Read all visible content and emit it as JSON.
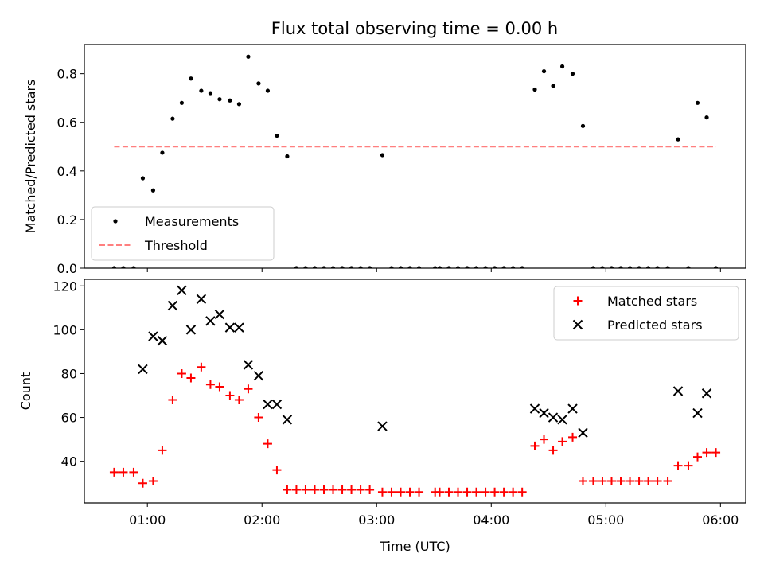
{
  "chart_data": [
    {
      "type": "scatter",
      "title": "Flux total observing time = 0.00 h",
      "xlabel": "",
      "ylabel": "Matched/Predicted stars",
      "ylim": [
        0,
        0.92
      ],
      "yticks": [
        0.0,
        0.2,
        0.4,
        0.6,
        0.8
      ],
      "ytick_labels": [
        "0.0",
        "0.2",
        "0.4",
        "0.6",
        "0.8"
      ],
      "x_unit": "hours UTC",
      "xlim": [
        0.45,
        6.22
      ],
      "legend_position": "lower-left",
      "series": [
        {
          "name": "Measurements",
          "marker": "dot",
          "color": "#000000",
          "points": [
            [
              0.71,
              0.0
            ],
            [
              0.79,
              0.0
            ],
            [
              0.88,
              0.0
            ],
            [
              0.96,
              0.37
            ],
            [
              1.05,
              0.32
            ],
            [
              1.13,
              0.475
            ],
            [
              1.22,
              0.615
            ],
            [
              1.3,
              0.68
            ],
            [
              1.38,
              0.78
            ],
            [
              1.47,
              0.73
            ],
            [
              1.55,
              0.72
            ],
            [
              1.63,
              0.695
            ],
            [
              1.72,
              0.69
            ],
            [
              1.8,
              0.675
            ],
            [
              1.88,
              0.87
            ],
            [
              1.97,
              0.76
            ],
            [
              2.05,
              0.73
            ],
            [
              2.13,
              0.545
            ],
            [
              2.22,
              0.46
            ],
            [
              2.3,
              0.0
            ],
            [
              2.38,
              0.0
            ],
            [
              2.46,
              0.0
            ],
            [
              2.54,
              0.0
            ],
            [
              2.62,
              0.0
            ],
            [
              2.7,
              0.0
            ],
            [
              2.78,
              0.0
            ],
            [
              2.86,
              0.0
            ],
            [
              2.94,
              0.0
            ],
            [
              3.05,
              0.465
            ],
            [
              3.13,
              0.0
            ],
            [
              3.21,
              0.0
            ],
            [
              3.29,
              0.0
            ],
            [
              3.37,
              0.0
            ],
            [
              3.51,
              0.0
            ],
            [
              3.55,
              0.0
            ],
            [
              3.63,
              0.0
            ],
            [
              3.71,
              0.0
            ],
            [
              3.79,
              0.0
            ],
            [
              3.87,
              0.0
            ],
            [
              3.95,
              0.0
            ],
            [
              4.03,
              0.0
            ],
            [
              4.11,
              0.0
            ],
            [
              4.19,
              0.0
            ],
            [
              4.27,
              0.0
            ],
            [
              4.38,
              0.735
            ],
            [
              4.46,
              0.81
            ],
            [
              4.54,
              0.75
            ],
            [
              4.62,
              0.83
            ],
            [
              4.71,
              0.8
            ],
            [
              4.8,
              0.585
            ],
            [
              4.89,
              0.0
            ],
            [
              4.97,
              0.0
            ],
            [
              5.05,
              0.0
            ],
            [
              5.13,
              0.0
            ],
            [
              5.21,
              0.0
            ],
            [
              5.29,
              0.0
            ],
            [
              5.37,
              0.0
            ],
            [
              5.45,
              0.0
            ],
            [
              5.54,
              0.0
            ],
            [
              5.63,
              0.53
            ],
            [
              5.72,
              0.0
            ],
            [
              5.8,
              0.68
            ],
            [
              5.88,
              0.62
            ],
            [
              5.96,
              0.0
            ]
          ]
        },
        {
          "name": "Threshold",
          "marker": "dashed-line",
          "color": "#ff7f7f",
          "points": [
            [
              0.71,
              0.5
            ],
            [
              5.96,
              0.5
            ]
          ]
        }
      ]
    },
    {
      "type": "scatter",
      "title": "",
      "xlabel": "Time (UTC)",
      "ylabel": "Count",
      "ylim": [
        21,
        123
      ],
      "yticks": [
        40,
        60,
        80,
        100,
        120
      ],
      "ytick_labels": [
        "40",
        "60",
        "80",
        "100",
        "120"
      ],
      "x_unit": "hours UTC",
      "xlim": [
        0.45,
        6.22
      ],
      "xticks": [
        1,
        2,
        3,
        4,
        5,
        6
      ],
      "xtick_labels": [
        "01:00",
        "02:00",
        "03:00",
        "04:00",
        "05:00",
        "06:00"
      ],
      "legend_position": "top-right",
      "series": [
        {
          "name": "Matched stars",
          "marker": "plus",
          "color": "#ff0000",
          "points": [
            [
              0.71,
              35
            ],
            [
              0.79,
              35
            ],
            [
              0.88,
              35
            ],
            [
              0.96,
              30
            ],
            [
              1.05,
              31
            ],
            [
              1.13,
              45
            ],
            [
              1.22,
              68
            ],
            [
              1.3,
              80
            ],
            [
              1.38,
              78
            ],
            [
              1.47,
              83
            ],
            [
              1.55,
              75
            ],
            [
              1.63,
              74
            ],
            [
              1.72,
              70
            ],
            [
              1.8,
              68
            ],
            [
              1.88,
              73
            ],
            [
              1.97,
              60
            ],
            [
              2.05,
              48
            ],
            [
              2.13,
              36
            ],
            [
              2.22,
              27
            ],
            [
              2.3,
              27
            ],
            [
              2.38,
              27
            ],
            [
              2.46,
              27
            ],
            [
              2.54,
              27
            ],
            [
              2.62,
              27
            ],
            [
              2.7,
              27
            ],
            [
              2.78,
              27
            ],
            [
              2.86,
              27
            ],
            [
              2.94,
              27
            ],
            [
              3.05,
              26
            ],
            [
              3.13,
              26
            ],
            [
              3.21,
              26
            ],
            [
              3.29,
              26
            ],
            [
              3.37,
              26
            ],
            [
              3.51,
              26
            ],
            [
              3.55,
              26
            ],
            [
              3.63,
              26
            ],
            [
              3.71,
              26
            ],
            [
              3.79,
              26
            ],
            [
              3.87,
              26
            ],
            [
              3.95,
              26
            ],
            [
              4.03,
              26
            ],
            [
              4.11,
              26
            ],
            [
              4.19,
              26
            ],
            [
              4.27,
              26
            ],
            [
              4.38,
              47
            ],
            [
              4.46,
              50
            ],
            [
              4.54,
              45
            ],
            [
              4.62,
              49
            ],
            [
              4.71,
              51
            ],
            [
              4.8,
              31
            ],
            [
              4.89,
              31
            ],
            [
              4.97,
              31
            ],
            [
              5.05,
              31
            ],
            [
              5.13,
              31
            ],
            [
              5.21,
              31
            ],
            [
              5.29,
              31
            ],
            [
              5.37,
              31
            ],
            [
              5.45,
              31
            ],
            [
              5.54,
              31
            ],
            [
              5.63,
              38
            ],
            [
              5.72,
              38
            ],
            [
              5.8,
              42
            ],
            [
              5.88,
              44
            ],
            [
              5.96,
              44
            ]
          ]
        },
        {
          "name": "Predicted stars",
          "marker": "x",
          "color": "#000000",
          "points": [
            [
              0.96,
              82
            ],
            [
              1.05,
              97
            ],
            [
              1.13,
              95
            ],
            [
              1.22,
              111
            ],
            [
              1.3,
              118
            ],
            [
              1.38,
              100
            ],
            [
              1.47,
              114
            ],
            [
              1.55,
              104
            ],
            [
              1.63,
              107
            ],
            [
              1.72,
              101
            ],
            [
              1.8,
              101
            ],
            [
              1.88,
              84
            ],
            [
              1.97,
              79
            ],
            [
              2.05,
              66
            ],
            [
              2.13,
              66
            ],
            [
              2.22,
              59
            ],
            [
              3.05,
              56
            ],
            [
              4.38,
              64
            ],
            [
              4.46,
              62
            ],
            [
              4.54,
              60
            ],
            [
              4.62,
              59
            ],
            [
              4.71,
              64
            ],
            [
              4.8,
              53
            ],
            [
              5.63,
              72
            ],
            [
              5.8,
              62
            ],
            [
              5.88,
              71
            ]
          ]
        }
      ]
    }
  ]
}
